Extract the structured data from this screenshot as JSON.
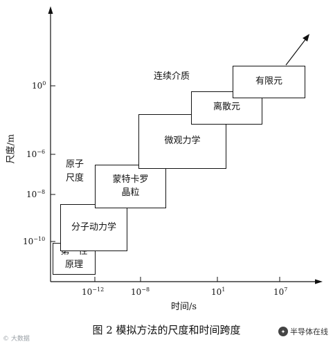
{
  "axes": {
    "y_label": "尺度/m",
    "x_label": "时间/s",
    "y_ticks": [
      {
        "base": "10",
        "exp": "0"
      },
      {
        "base": "10",
        "exp": "−6"
      },
      {
        "base": "10",
        "exp": "−8"
      },
      {
        "base": "10",
        "exp": "−10"
      }
    ],
    "x_ticks": [
      {
        "base": "10",
        "exp": "−12"
      },
      {
        "base": "10",
        "exp": "−8"
      },
      {
        "base": "10",
        "exp": "1"
      },
      {
        "base": "10",
        "exp": "7"
      }
    ]
  },
  "regions": {
    "continuum": "连续介质",
    "atomic_scale_line1": "原子",
    "atomic_scale_line2": "尺度"
  },
  "boxes": {
    "first_principles": [
      "第一性",
      "原理"
    ],
    "molecular_dynamics": "分子动力学",
    "monte_carlo": [
      "蒙特卡罗",
      "晶粒"
    ],
    "micromechanics": "微观力学",
    "discrete_element": "离散元",
    "finite_element": "有限元"
  },
  "caption": "图 2 模拟方法的尺度和时间跨度",
  "watermark_left": "© 大数据",
  "watermark_right": "半导体在线"
}
